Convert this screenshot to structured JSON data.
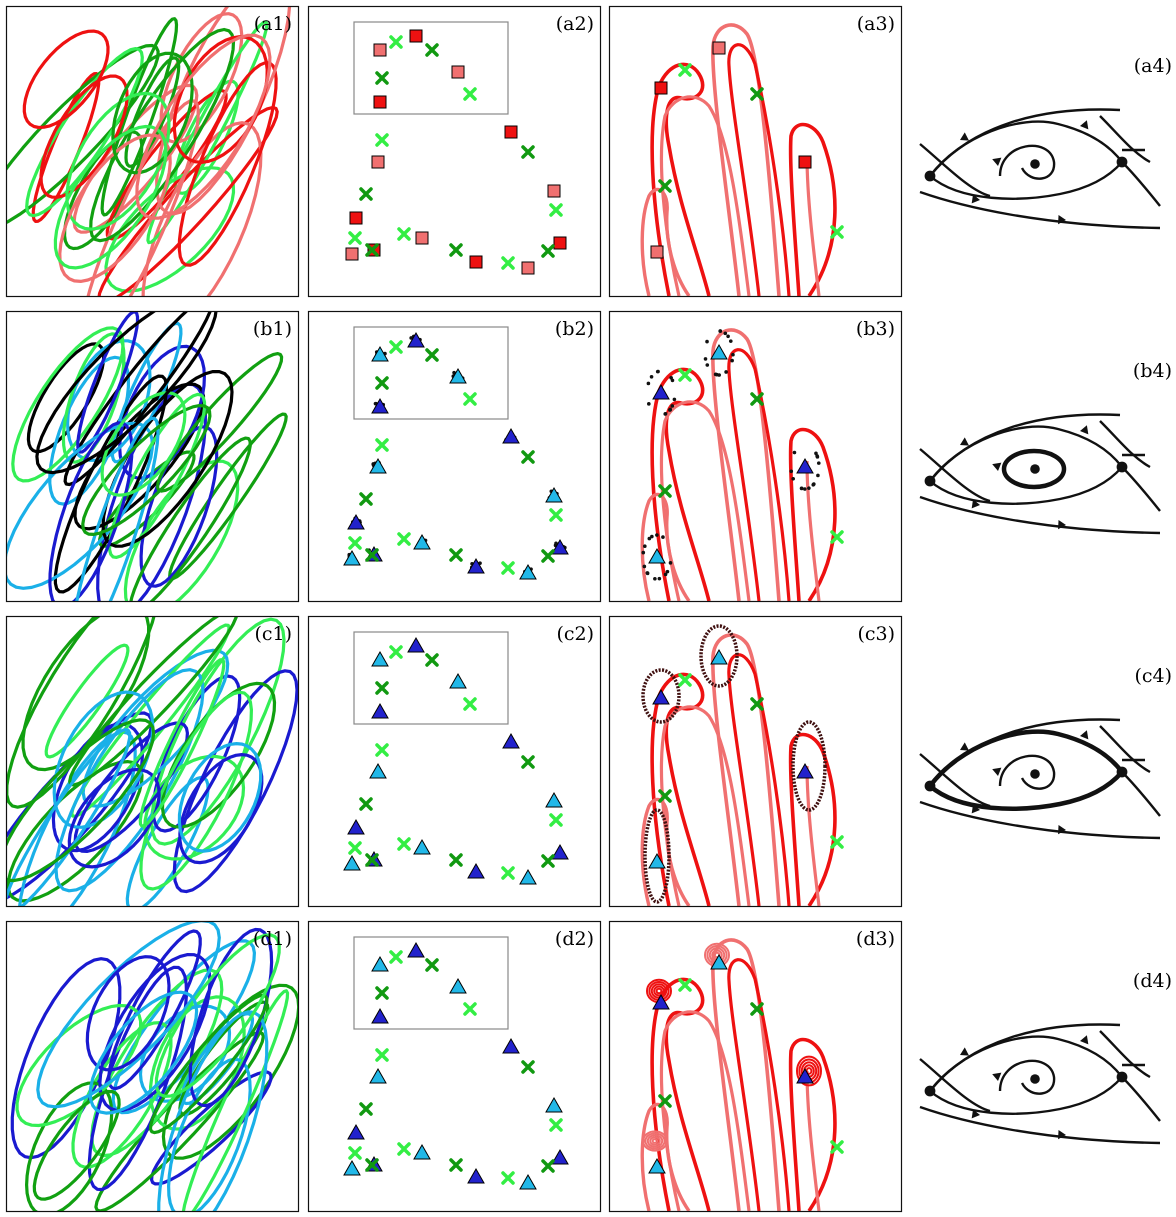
{
  "figure": {
    "rows": [
      {
        "id": "a",
        "labels": [
          "(a1)",
          "(a2)",
          "(a3)",
          "(a4)"
        ],
        "trajectory_colors": [
          "#ee1111",
          "#f07070",
          "#11a011",
          "#33ee55"
        ],
        "marker_shape": "square",
        "marker_colors": [
          "#ee1111",
          "#f07070"
        ],
        "phase_portrait": "spiral"
      },
      {
        "id": "b",
        "labels": [
          "(b1)",
          "(b2)",
          "(b3)",
          "(b4)"
        ],
        "trajectory_colors": [
          "#000000",
          "#1a1ad0",
          "#1ab0e8",
          "#11a011",
          "#33ee55"
        ],
        "marker_shape": "triangle",
        "marker_colors": [
          "#2222cc",
          "#22b8e8"
        ],
        "phase_portrait": "limit-cycle-stable"
      },
      {
        "id": "c",
        "labels": [
          "(c1)",
          "(c2)",
          "(c3)",
          "(c4)"
        ],
        "trajectory_colors": [
          "#1a1ad0",
          "#1ab0e8",
          "#11a011",
          "#33ee55"
        ],
        "marker_shape": "triangle",
        "marker_colors": [
          "#2222cc",
          "#22b8e8"
        ],
        "phase_portrait": "homoclinic"
      },
      {
        "id": "d",
        "labels": [
          "(d1)",
          "(d2)",
          "(d3)",
          "(d4)"
        ],
        "trajectory_colors": [
          "#1a1ad0",
          "#1ab0e8",
          "#11a011",
          "#33ee55"
        ],
        "marker_shape": "triangle",
        "marker_colors": [
          "#2222cc",
          "#22b8e8"
        ],
        "phase_portrait": "spiral"
      }
    ],
    "cross_colors": [
      "#119911",
      "#33ee44"
    ],
    "manifold_colors": [
      "#ee1111",
      "#f07070"
    ],
    "icons": {
      "node": "filled-circle",
      "saddle": "filled-circle",
      "flow_direction": "arrowhead"
    }
  }
}
